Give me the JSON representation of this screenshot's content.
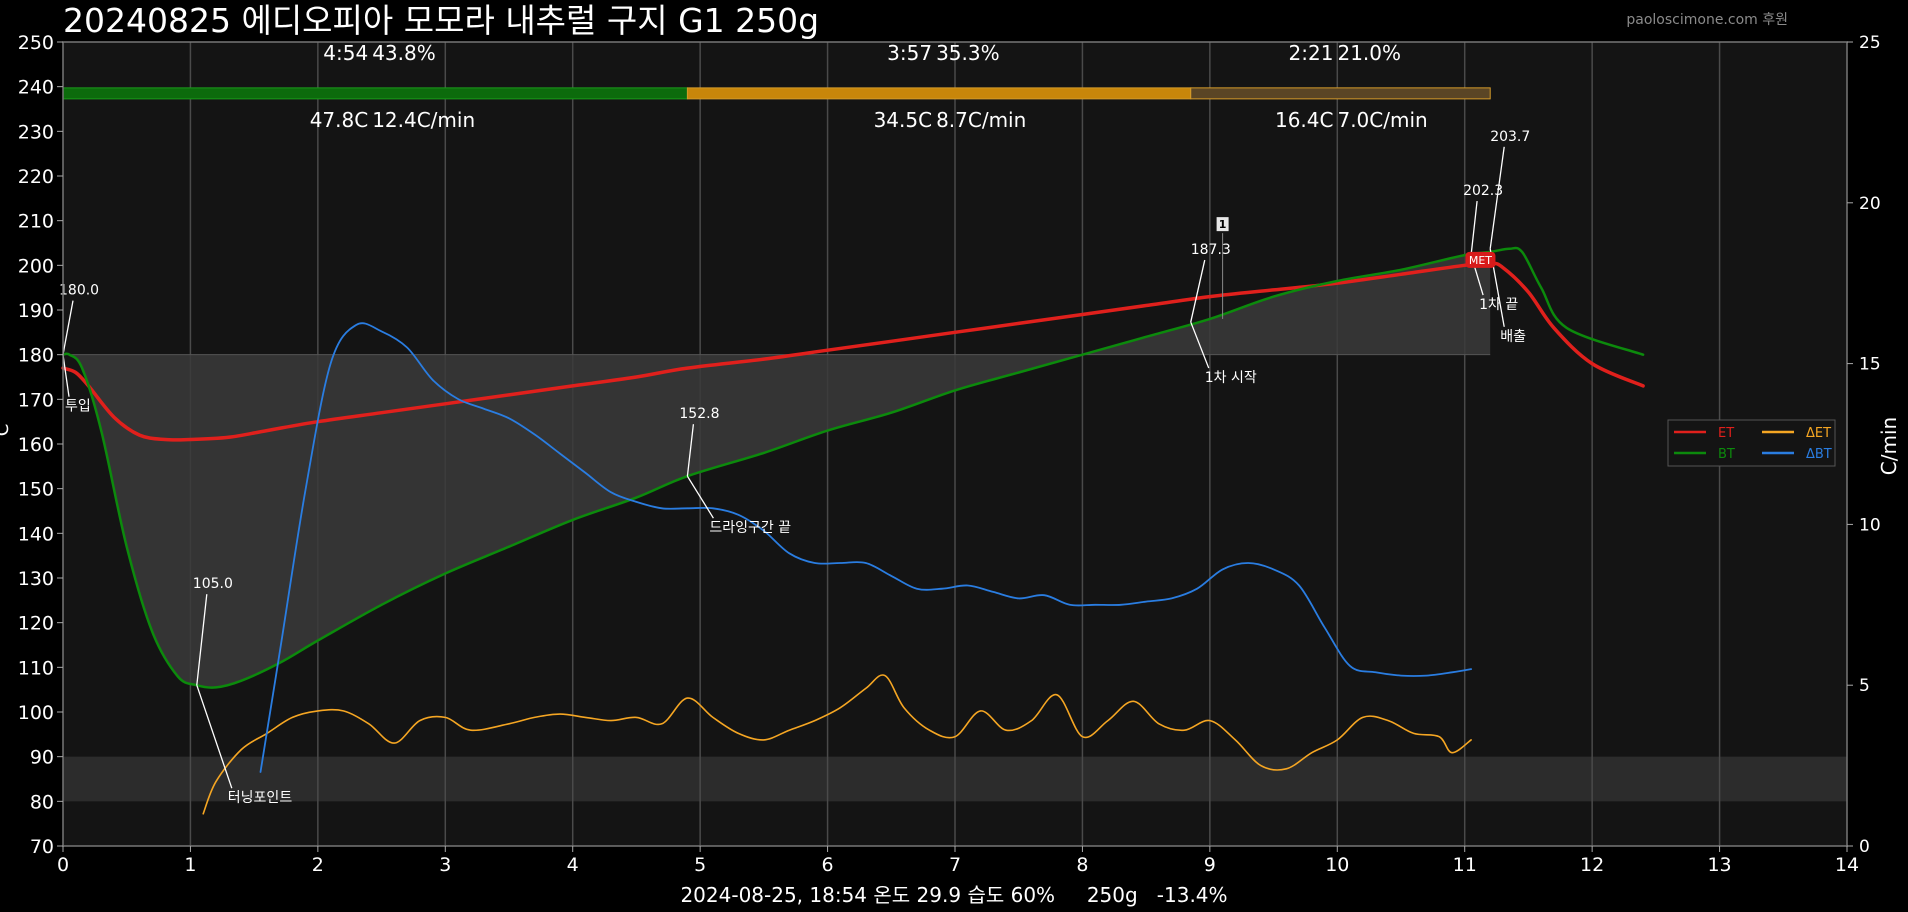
{
  "header": {
    "title": "20240825 에디오피아 모모라 내추럴 구지 G1 250g",
    "watermark": "paoloscimone.com 후원"
  },
  "footer": {
    "info": "2024-08-25, 18:54 온도 29.9 습도 60%     250g   -13.4%"
  },
  "colors": {
    "background": "#000000",
    "plot_bg": "#141414",
    "ET": "#e0201c",
    "BT": "#0c8a0c",
    "dET": "#f5a623",
    "dBT": "#2a7de1",
    "phase_drying": "#0c6b0c",
    "phase_maillard": "#c8860a",
    "phase_development": "#5a4525"
  },
  "chart_data": {
    "type": "line",
    "title": "20240825 에디오피아 모모라 내추럴 구지 G1 250g",
    "xlabel": "",
    "ylabel": "C",
    "y2label": "C/min",
    "xlim": [
      0,
      14
    ],
    "ylim": [
      70,
      250
    ],
    "y2lim": [
      0,
      25
    ],
    "xticks": [
      "0",
      "1",
      "2",
      "3",
      "4",
      "5",
      "6",
      "7",
      "8",
      "9",
      "10",
      "11",
      "12",
      "13",
      "14"
    ],
    "yticks": [
      "70",
      "80",
      "90",
      "100",
      "110",
      "120",
      "130",
      "140",
      "150",
      "160",
      "170",
      "180",
      "190",
      "200",
      "210",
      "220",
      "230",
      "240",
      "250"
    ],
    "y2ticks": [
      "0",
      "5",
      "10",
      "15",
      "20",
      "25"
    ],
    "grid": true,
    "legend_placement": "right",
    "legend": [
      {
        "name": "ET",
        "color": "#e0201c"
      },
      {
        "name": "BT",
        "color": "#0c8a0c"
      },
      {
        "name": "ΔET",
        "color": "#f5a623"
      },
      {
        "name": "ΔBT",
        "color": "#2a7de1"
      }
    ],
    "phases": [
      {
        "time": "4:54",
        "percent": "43.8%",
        "delta": "47.8C",
        "rate": "12.4C/min",
        "start": 0,
        "end": 4.9
      },
      {
        "time": "3:57",
        "percent": "35.3%",
        "delta": "34.5C",
        "rate": "8.7C/min",
        "start": 4.9,
        "end": 8.85
      },
      {
        "time": "2:21",
        "percent": "21.0%",
        "delta": "16.4C",
        "rate": "7.0C/min",
        "start": 8.85,
        "end": 11.2
      }
    ],
    "bands": [
      {
        "y_from": 80,
        "y_to": 90
      },
      {
        "y_from": 180,
        "y_to": 180
      }
    ],
    "series": [
      {
        "name": "ET",
        "axis": "left",
        "x": [
          0,
          0.1,
          0.2,
          0.4,
          0.6,
          0.8,
          1,
          1.3,
          1.6,
          2,
          2.5,
          3,
          3.5,
          4,
          4.5,
          4.9,
          5.5,
          6,
          6.5,
          7,
          7.5,
          8,
          8.5,
          9,
          9.5,
          10,
          10.5,
          11,
          11.2,
          11.3,
          11.5,
          11.7,
          12,
          12.4
        ],
        "y": [
          177,
          176,
          173,
          166,
          162,
          161,
          161,
          161.5,
          163,
          165,
          167,
          169,
          171,
          173,
          175,
          177,
          179,
          181,
          183,
          185,
          187,
          189,
          191,
          193,
          194.5,
          196,
          198,
          200,
          200.5,
          199.5,
          194,
          186,
          178,
          173
        ]
      },
      {
        "name": "BT",
        "axis": "left",
        "x": [
          0,
          0.05,
          0.15,
          0.3,
          0.5,
          0.7,
          0.9,
          1.05,
          1.2,
          1.4,
          1.7,
          2,
          2.5,
          3,
          3.5,
          4,
          4.5,
          4.9,
          5.5,
          6,
          6.5,
          7,
          7.5,
          8,
          8.5,
          9,
          9.5,
          10,
          10.5,
          11,
          11.2,
          11.35,
          11.45,
          11.6,
          11.8,
          12.4
        ],
        "y": [
          180,
          180,
          177,
          163,
          137,
          118,
          108,
          106,
          105.5,
          107,
          111,
          116,
          124,
          131,
          137,
          143,
          148,
          152.8,
          158,
          163,
          167,
          172,
          176,
          180,
          184,
          188,
          193,
          196.5,
          199,
          202.3,
          203,
          203.7,
          203,
          195,
          186,
          180
        ]
      },
      {
        "name": "ΔET",
        "axis": "right",
        "x": [
          1.1,
          1.2,
          1.4,
          1.6,
          1.8,
          2,
          2.2,
          2.4,
          2.6,
          2.8,
          3,
          3.2,
          3.5,
          3.7,
          3.9,
          4.1,
          4.3,
          4.5,
          4.7,
          4.9,
          5.1,
          5.3,
          5.5,
          5.7,
          5.9,
          6.1,
          6.3,
          6.45,
          6.6,
          6.8,
          7,
          7.2,
          7.4,
          7.6,
          7.8,
          8,
          8.2,
          8.4,
          8.6,
          8.8,
          9,
          9.2,
          9.4,
          9.6,
          9.8,
          10,
          10.2,
          10.4,
          10.6,
          10.8,
          10.9,
          11.05
        ],
        "y": [
          1,
          2,
          3,
          3.5,
          4,
          4.2,
          4.2,
          3.8,
          3.2,
          3.9,
          4,
          3.6,
          3.8,
          4,
          4.1,
          4,
          3.9,
          4,
          3.8,
          4.6,
          4,
          3.5,
          3.3,
          3.6,
          3.9,
          4.3,
          4.9,
          5.3,
          4.3,
          3.6,
          3.4,
          4.2,
          3.6,
          3.9,
          4.7,
          3.4,
          3.9,
          4.5,
          3.8,
          3.6,
          3.9,
          3.3,
          2.5,
          2.4,
          2.9,
          3.3,
          4,
          3.9,
          3.5,
          3.4,
          2.9,
          3.3
        ]
      },
      {
        "name": "ΔBT",
        "axis": "right",
        "x": [
          1.55,
          1.7,
          1.9,
          2.1,
          2.3,
          2.5,
          2.7,
          2.9,
          3.1,
          3.3,
          3.5,
          3.7,
          3.9,
          4.1,
          4.3,
          4.5,
          4.7,
          4.9,
          5.1,
          5.3,
          5.5,
          5.7,
          5.9,
          6.1,
          6.3,
          6.5,
          6.7,
          6.9,
          7.1,
          7.3,
          7.5,
          7.7,
          7.9,
          8.1,
          8.3,
          8.5,
          8.7,
          8.9,
          9.1,
          9.3,
          9.5,
          9.7,
          9.9,
          10.1,
          10.3,
          10.5,
          10.7,
          10.9,
          11.05
        ],
        "y": [
          2.3,
          6,
          11,
          15,
          16.2,
          16,
          15.5,
          14.5,
          13.9,
          13.6,
          13.3,
          12.8,
          12.2,
          11.6,
          11,
          10.7,
          10.5,
          10.5,
          10.5,
          10.3,
          9.8,
          9.1,
          8.8,
          8.8,
          8.8,
          8.4,
          8,
          8,
          8.1,
          7.9,
          7.7,
          7.8,
          7.5,
          7.5,
          7.5,
          7.6,
          7.7,
          8,
          8.6,
          8.8,
          8.6,
          8.1,
          6.8,
          5.6,
          5.4,
          5.3,
          5.3,
          5.4,
          5.5
        ]
      }
    ],
    "annotations": [
      {
        "label": "180.0",
        "x": 0,
        "y": 180
      },
      {
        "label": "투입",
        "x": 0,
        "y": 180
      },
      {
        "label": "105.0",
        "x": 1.05,
        "y": 106
      },
      {
        "label": "터닝포인트",
        "x": 1.05,
        "y": 106
      },
      {
        "label": "152.8",
        "x": 4.9,
        "y": 152.8
      },
      {
        "label": "드라잉구간 끝",
        "x": 4.9,
        "y": 152.8
      },
      {
        "label": "187.3",
        "x": 8.85,
        "y": 187.3
      },
      {
        "label": "1차 시작",
        "x": 8.85,
        "y": 187.3
      },
      {
        "label": "202.3",
        "x": 11.05,
        "y": 202.3
      },
      {
        "label": "1차 끝",
        "x": 11.05,
        "y": 202.3
      },
      {
        "label": "203.7",
        "x": 11.2,
        "y": 203.7
      },
      {
        "label": "배출",
        "x": 11.2,
        "y": 203.7
      }
    ],
    "markers": [
      {
        "label": "1",
        "x": 9.1,
        "y": 209
      },
      {
        "label": "MET",
        "x": 11.1,
        "y": 201
      }
    ]
  }
}
